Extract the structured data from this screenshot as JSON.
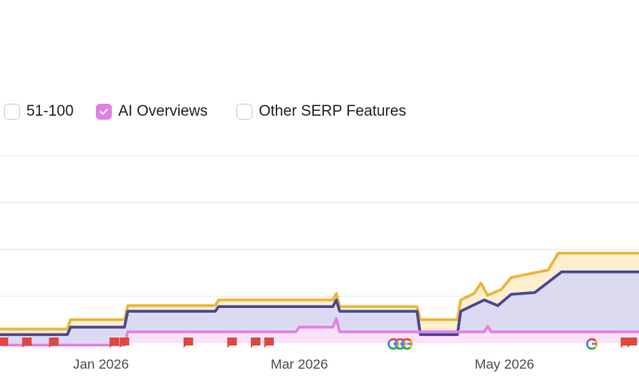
{
  "legend": {
    "items": [
      {
        "label": "51-100",
        "checked": false,
        "color": "#c9ccd1",
        "left": 5
      },
      {
        "label": "AI Overviews",
        "checked": true,
        "color": "#e47fe8",
        "left": 120
      },
      {
        "label": "Other SERP Features",
        "checked": false,
        "color": "#c9ccd1",
        "left": 296
      }
    ]
  },
  "chart_data": {
    "type": "area",
    "x_axis": {
      "ticks": [
        {
          "label": "Jan 2026",
          "day": 30
        },
        {
          "label": "Mar 2026",
          "day": 89
        },
        {
          "label": "May 2026",
          "day": 150
        }
      ]
    },
    "y_axis": {
      "range": [
        0,
        20
      ],
      "gridlines": [
        5,
        10,
        15,
        20
      ]
    },
    "grid": true,
    "series": [
      {
        "color": "#eab63b",
        "fill": "#fbefcf",
        "points": [
          [
            0,
            1.5
          ],
          [
            20,
            1.5
          ],
          [
            21,
            2.5
          ],
          [
            37,
            2.5
          ],
          [
            38,
            4.0
          ],
          [
            64,
            4.0
          ],
          [
            65,
            4.6
          ],
          [
            99,
            4.6
          ],
          [
            100,
            5.3
          ],
          [
            101,
            3.9
          ],
          [
            124,
            3.9
          ],
          [
            125,
            2.5
          ],
          [
            136,
            2.5
          ],
          [
            137,
            4.6
          ],
          [
            141,
            5.3
          ],
          [
            143,
            6.4
          ],
          [
            145,
            5.1
          ],
          [
            149,
            5.7
          ],
          [
            152,
            7.0
          ],
          [
            163,
            7.8
          ],
          [
            166,
            9.6
          ],
          [
            190,
            9.6
          ]
        ]
      },
      {
        "color": "#4a4890",
        "fill": "#dcdaf0",
        "points": [
          [
            0,
            0.9
          ],
          [
            20,
            0.9
          ],
          [
            21,
            1.7
          ],
          [
            37,
            1.7
          ],
          [
            38,
            3.4
          ],
          [
            64,
            3.4
          ],
          [
            65,
            3.9
          ],
          [
            99,
            3.9
          ],
          [
            100,
            4.6
          ],
          [
            101,
            3.4
          ],
          [
            124,
            3.4
          ],
          [
            125,
            0.9
          ],
          [
            136,
            0.9
          ],
          [
            137,
            3.4
          ],
          [
            144,
            4.6
          ],
          [
            148,
            4.0
          ],
          [
            152,
            5.2
          ],
          [
            159,
            5.4
          ],
          [
            167,
            7.6
          ],
          [
            190,
            7.6
          ]
        ]
      },
      {
        "color": "#e47fe8",
        "fill": "#fbe2fb",
        "points": [
          [
            0,
            -0.2
          ],
          [
            37,
            -0.2
          ],
          [
            38,
            1.2
          ],
          [
            88,
            1.2
          ],
          [
            89,
            1.7
          ],
          [
            99,
            1.7
          ],
          [
            100,
            2.6
          ],
          [
            101,
            1.2
          ],
          [
            144,
            1.2
          ],
          [
            145,
            1.8
          ],
          [
            146,
            1.2
          ],
          [
            190,
            1.2
          ]
        ]
      }
    ],
    "annotations": {
      "flag_color": "#e0473c",
      "flags_days": [
        1,
        8,
        16,
        34,
        37,
        56,
        69,
        76,
        80,
        186,
        188
      ],
      "google_days": [
        117,
        119,
        121,
        176
      ]
    }
  }
}
